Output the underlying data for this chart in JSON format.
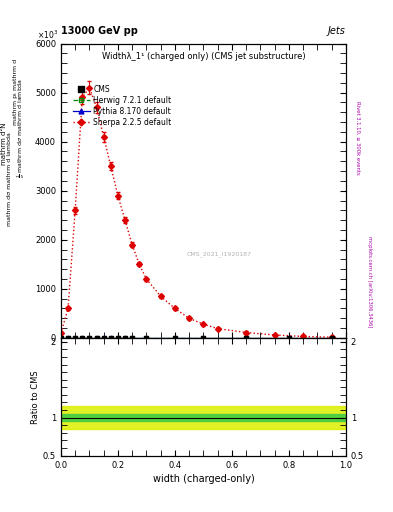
{
  "title_top": "13000 GeV pp",
  "title_right": "Jets",
  "plot_title": "Widthλ_1¹ (charged only) (CMS jet substructure)",
  "xlabel": "width (charged-only)",
  "ylabel_ratio": "Ratio to CMS",
  "watermark": "CMS_2021_I1920187",
  "xlim": [
    0,
    1
  ],
  "ylim_main": [
    0,
    6000
  ],
  "ylim_ratio": [
    0.5,
    2.05
  ],
  "x_sherpa": [
    0.0,
    0.025,
    0.05,
    0.075,
    0.1,
    0.125,
    0.15,
    0.175,
    0.2,
    0.225,
    0.25,
    0.275,
    0.3,
    0.35,
    0.4,
    0.45,
    0.5,
    0.55,
    0.65,
    0.75,
    0.85,
    0.95
  ],
  "y_sherpa": [
    100,
    600,
    2600,
    4900,
    5100,
    4700,
    4100,
    3500,
    2900,
    2400,
    1900,
    1500,
    1200,
    850,
    600,
    400,
    280,
    190,
    110,
    60,
    30,
    15
  ],
  "x_herwig": [
    0.0,
    0.025,
    0.05,
    0.075,
    0.1,
    0.125,
    0.15,
    0.175,
    0.2,
    0.225,
    0.25,
    0.3,
    0.4,
    0.5,
    0.65,
    0.8,
    0.95
  ],
  "y_herwig": [
    0,
    0,
    0,
    0,
    0,
    0,
    0,
    0,
    0,
    0,
    0,
    0,
    0,
    0,
    0,
    0,
    0
  ],
  "x_pythia": [
    0.0,
    0.025,
    0.05,
    0.075,
    0.1,
    0.125,
    0.15,
    0.175,
    0.2,
    0.225,
    0.25,
    0.3,
    0.4,
    0.5,
    0.65,
    0.8,
    0.95
  ],
  "y_pythia": [
    0,
    0,
    0,
    0,
    0,
    0,
    0,
    0,
    0,
    0,
    0,
    0,
    0,
    0,
    0,
    0,
    0
  ],
  "x_cms": [
    0.0,
    0.025,
    0.05,
    0.075,
    0.1,
    0.125,
    0.15,
    0.175,
    0.2,
    0.225,
    0.25,
    0.3,
    0.4,
    0.5,
    0.65,
    0.8,
    0.95
  ],
  "y_cms": [
    0,
    0,
    0,
    0,
    0,
    0,
    0,
    0,
    0,
    0,
    0,
    0,
    0,
    0,
    0,
    0,
    0
  ],
  "color_sherpa": "#dd0000",
  "color_herwig": "#008800",
  "color_pythia": "#0000cc",
  "color_cms": "#000000",
  "band_yellow": "#ddee00",
  "band_green": "#44cc44",
  "ytick_labels": [
    "0",
    "1000",
    "2000",
    "3000",
    "4000",
    "5000",
    "6000"
  ],
  "ytick_values": [
    0,
    1000,
    2000,
    3000,
    4000,
    5000,
    6000
  ],
  "ratio_yticks": [
    0.5,
    1.0,
    2.0
  ],
  "ratio_ytick_labels": [
    "0.5",
    "1",
    "2"
  ]
}
